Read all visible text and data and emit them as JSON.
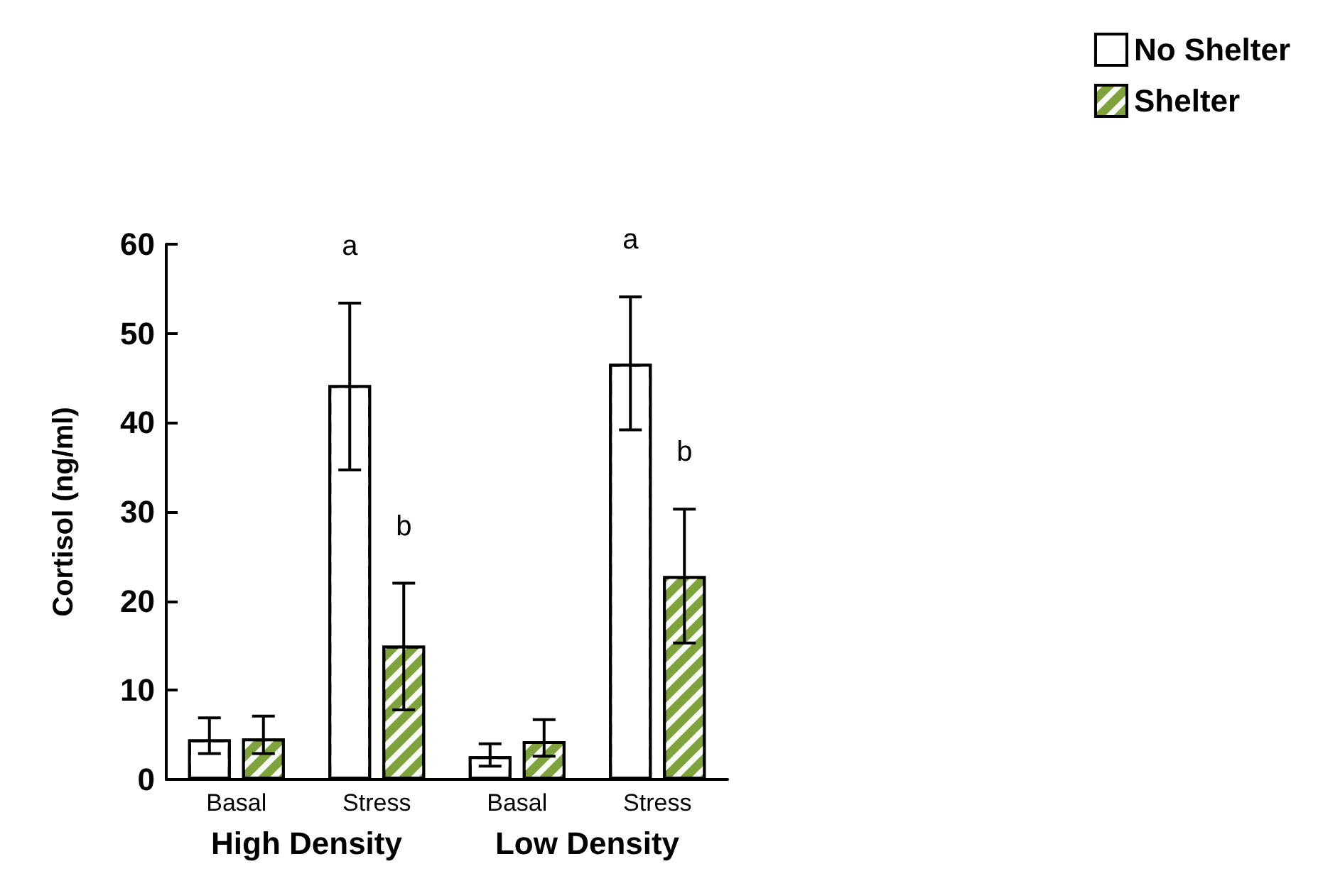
{
  "chart_data": {
    "type": "bar",
    "ylabel": "Cortisol (ng/ml)",
    "categories": [
      "Basal",
      "Stress",
      "Basal",
      "Stress"
    ],
    "series": [
      {
        "name": "No Shelter",
        "color": "#ffffff",
        "values": [
          4.5,
          44.2,
          2.6,
          46.6
        ],
        "errors": [
          [
            2.9,
            6.9
          ],
          [
            34.7,
            53.4
          ],
          [
            1.5,
            4.0
          ],
          [
            39.2,
            54.1
          ]
        ]
      },
      {
        "name": "Shelter",
        "color": "#7fa33c",
        "values": [
          4.6,
          15,
          4.3,
          22.8
        ],
        "errors": [
          [
            2.9,
            7.1
          ],
          [
            7.8,
            22
          ],
          [
            2.6,
            6.7
          ],
          [
            15.3,
            30.3
          ]
        ]
      }
    ],
    "annotations": [
      "High Density",
      "Low Density",
      "a",
      "b",
      "a",
      "b"
    ],
    "ylim": [
      0,
      60
    ],
    "yticks": [
      0,
      10,
      20,
      30,
      40,
      50,
      60
    ],
    "grid": false,
    "legend": "top right"
  }
}
